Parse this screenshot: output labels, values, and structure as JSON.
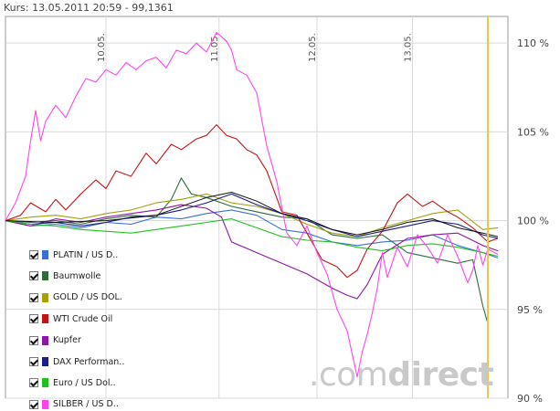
{
  "header": {
    "quote_label": "Kurs: 13.05.2011 20:59 - 99,1361"
  },
  "watermark": {
    "prefix": ".com",
    "suffix": "direct"
  },
  "colors": {
    "grid": "#d9d9d9",
    "axis_border": "#9a9a9a",
    "cursor_line": "#f5c24a"
  },
  "chart_data": {
    "type": "line",
    "ylim": [
      90,
      111.5
    ],
    "y_ticks": [
      {
        "value": 90,
        "label": "90 %"
      },
      {
        "value": 95,
        "label": "95 %"
      },
      {
        "value": 100,
        "label": "100 %"
      },
      {
        "value": 105,
        "label": "105 %"
      },
      {
        "value": 110,
        "label": "110 %"
      }
    ],
    "x_domain": [
      0,
      1
    ],
    "x_ticks": [
      {
        "value": 0.2,
        "label": "10.05."
      },
      {
        "value": 0.425,
        "label": "11.05."
      },
      {
        "value": 0.62,
        "label": "12.05."
      },
      {
        "value": 0.81,
        "label": "13.05."
      }
    ],
    "cursor_x": 0.96,
    "series": [
      {
        "name": "PLATIN / US D..",
        "color": "#3a6fd8",
        "points": [
          [
            0,
            100
          ],
          [
            0.05,
            99.7
          ],
          [
            0.1,
            99.8
          ],
          [
            0.15,
            99.6
          ],
          [
            0.2,
            99.9
          ],
          [
            0.25,
            99.8
          ],
          [
            0.3,
            100.2
          ],
          [
            0.35,
            100.1
          ],
          [
            0.4,
            100.4
          ],
          [
            0.45,
            100.6
          ],
          [
            0.5,
            100.3
          ],
          [
            0.55,
            99.5
          ],
          [
            0.6,
            99.3
          ],
          [
            0.65,
            98.8
          ],
          [
            0.7,
            98.6
          ],
          [
            0.75,
            98.8
          ],
          [
            0.8,
            98.9
          ],
          [
            0.85,
            99.2
          ],
          [
            0.9,
            98.6
          ],
          [
            0.95,
            98.2
          ],
          [
            0.98,
            97.9
          ]
        ]
      },
      {
        "name": "Baumwolle",
        "color": "#2b6e3a",
        "points": [
          [
            0,
            100
          ],
          [
            0.05,
            99.9
          ],
          [
            0.1,
            100
          ],
          [
            0.15,
            99.8
          ],
          [
            0.2,
            100.1
          ],
          [
            0.25,
            100.3
          ],
          [
            0.3,
            100.2
          ],
          [
            0.33,
            101.2
          ],
          [
            0.35,
            102.4
          ],
          [
            0.37,
            101.5
          ],
          [
            0.4,
            101.3
          ],
          [
            0.45,
            100.8
          ],
          [
            0.5,
            100.5
          ],
          [
            0.55,
            100.2
          ],
          [
            0.6,
            100.1
          ],
          [
            0.65,
            99.2
          ],
          [
            0.7,
            99
          ],
          [
            0.75,
            99.2
          ],
          [
            0.8,
            98.2
          ],
          [
            0.85,
            97.9
          ],
          [
            0.9,
            97.6
          ],
          [
            0.93,
            97.8
          ],
          [
            0.95,
            95.2
          ],
          [
            0.96,
            94.2
          ]
        ]
      },
      {
        "name": "GOLD / US DOL.",
        "color": "#a5a010",
        "points": [
          [
            0,
            100
          ],
          [
            0.05,
            100.2
          ],
          [
            0.1,
            100.3
          ],
          [
            0.15,
            100.1
          ],
          [
            0.2,
            100.4
          ],
          [
            0.25,
            100.6
          ],
          [
            0.3,
            101
          ],
          [
            0.35,
            101.2
          ],
          [
            0.4,
            101.5
          ],
          [
            0.45,
            101
          ],
          [
            0.5,
            100.8
          ],
          [
            0.55,
            100.4
          ],
          [
            0.6,
            99.8
          ],
          [
            0.65,
            99.3
          ],
          [
            0.7,
            99.1
          ],
          [
            0.75,
            99.6
          ],
          [
            0.8,
            100
          ],
          [
            0.85,
            100.4
          ],
          [
            0.9,
            100.6
          ],
          [
            0.95,
            99.5
          ],
          [
            0.98,
            99.6
          ]
        ]
      },
      {
        "name": "WTI Crude Oil",
        "color": "#c31414",
        "points": [
          [
            0,
            100
          ],
          [
            0.03,
            100.3
          ],
          [
            0.05,
            101
          ],
          [
            0.08,
            100.5
          ],
          [
            0.1,
            101.2
          ],
          [
            0.12,
            100.6
          ],
          [
            0.15,
            101.5
          ],
          [
            0.18,
            102.3
          ],
          [
            0.2,
            101.8
          ],
          [
            0.22,
            102.8
          ],
          [
            0.25,
            102.5
          ],
          [
            0.28,
            103.8
          ],
          [
            0.3,
            103.2
          ],
          [
            0.33,
            104.3
          ],
          [
            0.35,
            104
          ],
          [
            0.38,
            104.6
          ],
          [
            0.4,
            104.8
          ],
          [
            0.42,
            105.4
          ],
          [
            0.44,
            104.8
          ],
          [
            0.46,
            104.6
          ],
          [
            0.48,
            104
          ],
          [
            0.5,
            103.7
          ],
          [
            0.52,
            102.8
          ],
          [
            0.55,
            100.5
          ],
          [
            0.58,
            100.3
          ],
          [
            0.6,
            99.3
          ],
          [
            0.63,
            97.8
          ],
          [
            0.66,
            97.4
          ],
          [
            0.68,
            96.8
          ],
          [
            0.7,
            97.2
          ],
          [
            0.72,
            98.4
          ],
          [
            0.75,
            99.4
          ],
          [
            0.78,
            101
          ],
          [
            0.8,
            101.5
          ],
          [
            0.83,
            100.8
          ],
          [
            0.85,
            101.1
          ],
          [
            0.88,
            100.5
          ],
          [
            0.9,
            100.2
          ],
          [
            0.93,
            99.6
          ],
          [
            0.96,
            98.8
          ],
          [
            0.98,
            99
          ]
        ]
      },
      {
        "name": "Kupfer",
        "color": "#8e16a6",
        "points": [
          [
            0,
            100
          ],
          [
            0.05,
            99.7
          ],
          [
            0.1,
            100.1
          ],
          [
            0.15,
            99.9
          ],
          [
            0.2,
            100.2
          ],
          [
            0.25,
            100.4
          ],
          [
            0.3,
            100.6
          ],
          [
            0.35,
            100.9
          ],
          [
            0.4,
            100.7
          ],
          [
            0.43,
            100.2
          ],
          [
            0.45,
            98.8
          ],
          [
            0.5,
            98.2
          ],
          [
            0.55,
            97.6
          ],
          [
            0.6,
            97
          ],
          [
            0.65,
            96.2
          ],
          [
            0.68,
            95.8
          ],
          [
            0.7,
            95.6
          ],
          [
            0.72,
            96.4
          ],
          [
            0.75,
            98.1
          ],
          [
            0.8,
            99
          ],
          [
            0.85,
            99.2
          ],
          [
            0.9,
            99.3
          ],
          [
            0.95,
            98.6
          ],
          [
            0.98,
            98.3
          ]
        ]
      },
      {
        "name": "DAX Performan..",
        "color": "#1b1b8a",
        "points": [
          [
            0,
            100
          ],
          [
            0.05,
            99.8
          ],
          [
            0.1,
            99.9
          ],
          [
            0.15,
            99.7
          ],
          [
            0.2,
            99.9
          ],
          [
            0.25,
            100.2
          ],
          [
            0.3,
            100.3
          ],
          [
            0.35,
            100.6
          ],
          [
            0.4,
            101
          ],
          [
            0.45,
            101.5
          ],
          [
            0.5,
            100.9
          ],
          [
            0.55,
            100.4
          ],
          [
            0.6,
            100
          ],
          [
            0.65,
            99.5
          ],
          [
            0.7,
            99.1
          ],
          [
            0.75,
            99.4
          ],
          [
            0.8,
            99.7
          ],
          [
            0.85,
            100
          ],
          [
            0.9,
            99.8
          ],
          [
            0.95,
            99.2
          ],
          [
            0.98,
            99
          ]
        ]
      },
      {
        "name": "Euro / US Dol..",
        "color": "#1fc01f",
        "points": [
          [
            0,
            100
          ],
          [
            0.05,
            99.8
          ],
          [
            0.1,
            99.7
          ],
          [
            0.15,
            99.5
          ],
          [
            0.2,
            99.4
          ],
          [
            0.25,
            99.3
          ],
          [
            0.3,
            99.5
          ],
          [
            0.35,
            99.7
          ],
          [
            0.4,
            99.9
          ],
          [
            0.45,
            100.1
          ],
          [
            0.5,
            99.6
          ],
          [
            0.55,
            99.1
          ],
          [
            0.6,
            98.9
          ],
          [
            0.65,
            98.8
          ],
          [
            0.7,
            98.5
          ],
          [
            0.75,
            98.3
          ],
          [
            0.8,
            98.6
          ],
          [
            0.85,
            98.7
          ],
          [
            0.9,
            98.5
          ],
          [
            0.95,
            98.2
          ],
          [
            0.98,
            98
          ]
        ]
      },
      {
        "name": "SILBER / US D..",
        "color": "#ff44ee",
        "points": [
          [
            0,
            100
          ],
          [
            0.02,
            101
          ],
          [
            0.04,
            102.5
          ],
          [
            0.05,
            104.5
          ],
          [
            0.06,
            106.2
          ],
          [
            0.07,
            104.5
          ],
          [
            0.08,
            105.6
          ],
          [
            0.1,
            106.5
          ],
          [
            0.12,
            105.8
          ],
          [
            0.14,
            107
          ],
          [
            0.16,
            108
          ],
          [
            0.18,
            107.8
          ],
          [
            0.2,
            108.5
          ],
          [
            0.22,
            108.2
          ],
          [
            0.24,
            108.9
          ],
          [
            0.26,
            108.5
          ],
          [
            0.28,
            109
          ],
          [
            0.3,
            109.2
          ],
          [
            0.32,
            108.6
          ],
          [
            0.34,
            109.6
          ],
          [
            0.36,
            109.4
          ],
          [
            0.38,
            110
          ],
          [
            0.4,
            109.5
          ],
          [
            0.42,
            110.6
          ],
          [
            0.44,
            110.1
          ],
          [
            0.45,
            109.6
          ],
          [
            0.46,
            108.5
          ],
          [
            0.48,
            108.2
          ],
          [
            0.5,
            107.2
          ],
          [
            0.52,
            104.2
          ],
          [
            0.54,
            102.2
          ],
          [
            0.56,
            99.3
          ],
          [
            0.58,
            98.6
          ],
          [
            0.6,
            99.7
          ],
          [
            0.62,
            98.2
          ],
          [
            0.64,
            97
          ],
          [
            0.66,
            95
          ],
          [
            0.68,
            93.8
          ],
          [
            0.69,
            92.5
          ],
          [
            0.7,
            91.2
          ],
          [
            0.71,
            92.6
          ],
          [
            0.72,
            93.6
          ],
          [
            0.73,
            94.8
          ],
          [
            0.74,
            96.2
          ],
          [
            0.75,
            98.2
          ],
          [
            0.76,
            96.8
          ],
          [
            0.78,
            98.5
          ],
          [
            0.8,
            97.4
          ],
          [
            0.82,
            99.2
          ],
          [
            0.84,
            98.5
          ],
          [
            0.86,
            97.6
          ],
          [
            0.88,
            99.2
          ],
          [
            0.9,
            98
          ],
          [
            0.92,
            96.5
          ],
          [
            0.93,
            97.2
          ],
          [
            0.94,
            98.6
          ],
          [
            0.95,
            97.5
          ],
          [
            0.96,
            98.4
          ],
          [
            0.98,
            98.1
          ]
        ]
      }
    ],
    "last_price_line": {
      "color": "#111111",
      "points": [
        [
          0,
          100
        ],
        [
          0.1,
          99.9
        ],
        [
          0.2,
          100
        ],
        [
          0.3,
          100.3
        ],
        [
          0.4,
          101.3
        ],
        [
          0.45,
          101.6
        ],
        [
          0.5,
          101.1
        ],
        [
          0.55,
          100.4
        ],
        [
          0.6,
          100.1
        ],
        [
          0.65,
          99.5
        ],
        [
          0.7,
          99.2
        ],
        [
          0.75,
          99.5
        ],
        [
          0.8,
          99.9
        ],
        [
          0.85,
          100.1
        ],
        [
          0.9,
          99.6
        ],
        [
          0.95,
          99.3
        ],
        [
          0.98,
          99.1
        ]
      ]
    }
  }
}
